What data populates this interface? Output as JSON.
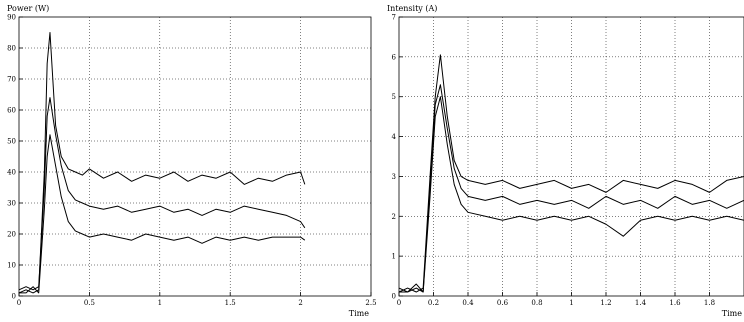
{
  "colors": {
    "background": "#ffffff",
    "line": "#000000",
    "grid": "#000000"
  },
  "chart_data": [
    {
      "type": "line",
      "title": "",
      "ylabel": "Power (W)",
      "xlabel": "Time",
      "xlim": [
        0,
        2.5
      ],
      "ylim": [
        0,
        90
      ],
      "xticks": [
        0,
        0.5,
        1,
        1.5,
        2,
        2.5
      ],
      "xtick_labels": [
        "0",
        "0.5",
        "1",
        "1.5",
        "2",
        "2.5"
      ],
      "yticks": [
        0,
        10,
        20,
        30,
        40,
        50,
        60,
        70,
        80,
        90
      ],
      "ytick_labels": [
        "0",
        "10",
        "20",
        "30",
        "40",
        "50",
        "60",
        "70",
        "80",
        "90"
      ],
      "grid": true,
      "legend": "none",
      "series": [
        {
          "x": [
            0,
            0.05,
            0.1,
            0.14,
            0.18,
            0.2,
            0.22,
            0.26,
            0.3,
            0.35,
            0.4,
            0.45,
            0.5,
            0.6,
            0.7,
            0.8,
            0.9,
            1.0,
            1.1,
            1.2,
            1.3,
            1.4,
            1.5,
            1.6,
            1.7,
            1.8,
            1.9,
            2.0,
            2.03
          ],
          "y": [
            1,
            2,
            1,
            2,
            40,
            75,
            85,
            55,
            45,
            41,
            40,
            39,
            41,
            38,
            40,
            37,
            39,
            38,
            40,
            37,
            39,
            38,
            40,
            36,
            38,
            37,
            39,
            40,
            36
          ]
        },
        {
          "x": [
            0,
            0.05,
            0.1,
            0.14,
            0.18,
            0.2,
            0.22,
            0.26,
            0.3,
            0.35,
            0.4,
            0.45,
            0.5,
            0.6,
            0.7,
            0.8,
            0.9,
            1.0,
            1.1,
            1.2,
            1.3,
            1.4,
            1.5,
            1.6,
            1.7,
            1.8,
            1.9,
            2.0,
            2.03
          ],
          "y": [
            2,
            3,
            2,
            3,
            35,
            58,
            64,
            52,
            42,
            34,
            31,
            30,
            29,
            28,
            29,
            27,
            28,
            29,
            27,
            28,
            26,
            28,
            27,
            29,
            28,
            27,
            26,
            24,
            22
          ]
        },
        {
          "x": [
            0,
            0.05,
            0.1,
            0.14,
            0.18,
            0.2,
            0.22,
            0.26,
            0.3,
            0.35,
            0.4,
            0.45,
            0.5,
            0.6,
            0.7,
            0.8,
            0.9,
            1.0,
            1.1,
            1.2,
            1.3,
            1.4,
            1.5,
            1.6,
            1.7,
            1.8,
            1.9,
            2.0,
            2.03
          ],
          "y": [
            1,
            1,
            3,
            1,
            28,
            45,
            52,
            42,
            32,
            24,
            21,
            20,
            19,
            20,
            19,
            18,
            20,
            19,
            18,
            19,
            17,
            19,
            18,
            19,
            18,
            19,
            19,
            19,
            18
          ]
        }
      ]
    },
    {
      "type": "line",
      "title": "",
      "ylabel": "Intensity (A)",
      "xlabel": "Time",
      "xlim": [
        0,
        2
      ],
      "ylim": [
        0,
        7
      ],
      "xticks": [
        0,
        0.2,
        0.4,
        0.6,
        0.8,
        1.0,
        1.2,
        1.4,
        1.6,
        1.8
      ],
      "xtick_labels": [
        "0",
        "0.2",
        "0.4",
        "0.6",
        "0.8",
        "1",
        "1.2",
        "1.4",
        "1.6",
        "1.8"
      ],
      "yticks": [
        0,
        1,
        2,
        3,
        4,
        5,
        6,
        7
      ],
      "ytick_labels": [
        "0",
        "1",
        "2",
        "3",
        "4",
        "5",
        "6",
        "7"
      ],
      "grid": true,
      "legend": "none",
      "series": [
        {
          "x": [
            0,
            0.05,
            0.1,
            0.14,
            0.18,
            0.21,
            0.24,
            0.28,
            0.32,
            0.36,
            0.4,
            0.5,
            0.6,
            0.7,
            0.8,
            0.9,
            1.0,
            1.1,
            1.2,
            1.3,
            1.4,
            1.5,
            1.6,
            1.7,
            1.8,
            1.9,
            2.0
          ],
          "y": [
            0.1,
            0.2,
            0.1,
            0.2,
            3.0,
            5.0,
            6.05,
            4.5,
            3.4,
            3.0,
            2.9,
            2.8,
            2.9,
            2.7,
            2.8,
            2.9,
            2.7,
            2.8,
            2.6,
            2.9,
            2.8,
            2.7,
            2.9,
            2.8,
            2.6,
            2.9,
            3.0
          ]
        },
        {
          "x": [
            0,
            0.05,
            0.1,
            0.14,
            0.18,
            0.21,
            0.24,
            0.28,
            0.32,
            0.36,
            0.4,
            0.5,
            0.6,
            0.7,
            0.8,
            0.9,
            1.0,
            1.1,
            1.2,
            1.3,
            1.4,
            1.5,
            1.6,
            1.7,
            1.8,
            1.9,
            2.0
          ],
          "y": [
            0.2,
            0.1,
            0.3,
            0.1,
            2.8,
            4.8,
            5.3,
            4.2,
            3.2,
            2.7,
            2.5,
            2.4,
            2.5,
            2.3,
            2.4,
            2.3,
            2.4,
            2.2,
            2.5,
            2.3,
            2.4,
            2.2,
            2.5,
            2.3,
            2.4,
            2.2,
            2.4
          ]
        },
        {
          "x": [
            0,
            0.05,
            0.1,
            0.14,
            0.18,
            0.21,
            0.24,
            0.28,
            0.32,
            0.36,
            0.4,
            0.5,
            0.6,
            0.7,
            0.8,
            0.9,
            1.0,
            1.1,
            1.2,
            1.3,
            1.4,
            1.5,
            1.6,
            1.7,
            1.8,
            1.9,
            2.0
          ],
          "y": [
            0.1,
            0.1,
            0.2,
            0.1,
            2.5,
            4.5,
            5.0,
            3.8,
            2.8,
            2.3,
            2.1,
            2.0,
            1.9,
            2.0,
            1.9,
            2.0,
            1.9,
            2.0,
            1.8,
            1.5,
            1.9,
            2.0,
            1.9,
            2.0,
            1.9,
            2.0,
            1.9
          ]
        }
      ]
    }
  ]
}
